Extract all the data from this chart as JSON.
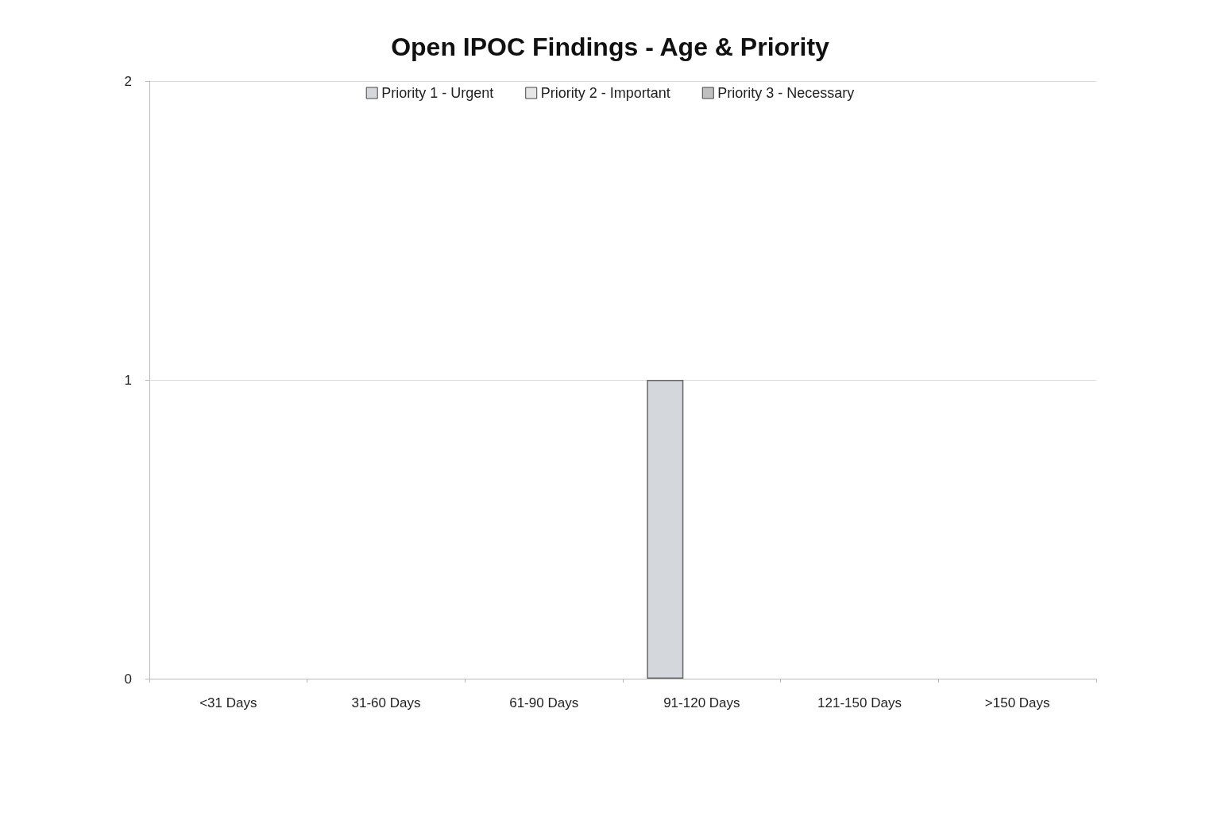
{
  "chart_data": {
    "type": "bar",
    "title": "Open IPOC Findings - Age & Priority",
    "categories": [
      "<31 Days",
      "31-60 Days",
      "61-90 Days",
      "91-120 Days",
      "121-150 Days",
      ">150 Days"
    ],
    "series": [
      {
        "name": "Priority 1 - Urgent",
        "color": "#d4d7db",
        "values": [
          0,
          0,
          0,
          1,
          0,
          0
        ]
      },
      {
        "name": "Priority 2 - Important",
        "color": "#e6e6e6",
        "values": [
          0,
          0,
          0,
          0,
          0,
          0
        ]
      },
      {
        "name": "Priority 3 - Necessary",
        "color": "#bfbfbf",
        "values": [
          0,
          0,
          0,
          0,
          0,
          0
        ]
      }
    ],
    "ylim": [
      0,
      2
    ],
    "yticks": [
      0,
      1,
      2
    ],
    "grid": "y",
    "legend": "top"
  }
}
